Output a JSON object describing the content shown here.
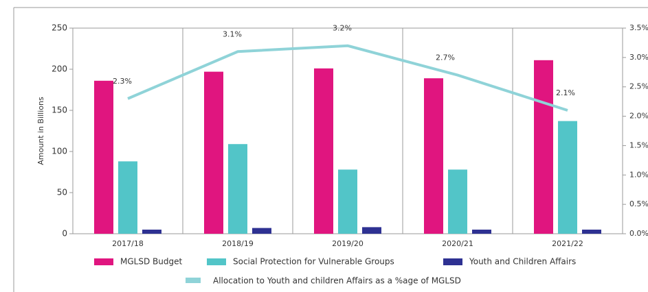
{
  "chart_data": {
    "type": "bar",
    "ylabel": "Amount in Billions",
    "categories": [
      "2017/18",
      "2018/19",
      "2019/20",
      "2020/21",
      "2021/22"
    ],
    "series": [
      {
        "name": "MGLSD Budget",
        "color": "#e0157f",
        "values": [
          186,
          197,
          201,
          189,
          211
        ]
      },
      {
        "name": "Social Protection for Vulnerable Groups",
        "color": "#52c5c8",
        "values": [
          88,
          109,
          78,
          78,
          137
        ]
      },
      {
        "name": "Youth and Children Affairs",
        "color": "#2e3192",
        "values": [
          5,
          7,
          8,
          5,
          5
        ]
      },
      {
        "name": "Allocation to Youth and children Affairs as a %age of MGLSD",
        "type": "line",
        "axis": "y2",
        "color": "#8fd3d8",
        "values": [
          2.3,
          3.1,
          3.2,
          2.7,
          2.1
        ],
        "value_labels": [
          "2.3%",
          "3.1%",
          "3.2%",
          "2.7%",
          "2.1%"
        ]
      }
    ],
    "ylim": [
      0,
      250
    ],
    "yticks": [
      0,
      50,
      100,
      150,
      200,
      250
    ],
    "y2lim": [
      0,
      3.5
    ],
    "y2ticks": [
      {
        "value": 0,
        "label": "0.0%"
      },
      {
        "value": 0.5,
        "label": "0.5%"
      },
      {
        "value": 1,
        "label": "1.0%"
      },
      {
        "value": 1.5,
        "label": "1.5%"
      },
      {
        "value": 2,
        "label": "2.0%"
      },
      {
        "value": 2.5,
        "label": "2.5%"
      },
      {
        "value": 3,
        "label": "3.0%"
      },
      {
        "value": 3.5,
        "label": "3.5%"
      }
    ]
  }
}
